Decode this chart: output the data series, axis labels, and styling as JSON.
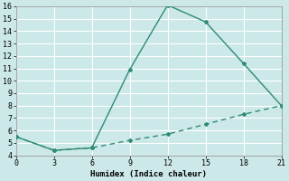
{
  "xlabel": "Humidex (Indice chaleur)",
  "background_color": "#cce8e8",
  "grid_color": "#ffffff",
  "line_color": "#2e8b74",
  "xlim": [
    0,
    21
  ],
  "ylim": [
    4,
    16
  ],
  "xticks": [
    0,
    3,
    6,
    9,
    12,
    15,
    18,
    21
  ],
  "yticks": [
    4,
    5,
    6,
    7,
    8,
    9,
    10,
    11,
    12,
    13,
    14,
    15,
    16
  ],
  "line1_x": [
    0,
    3,
    6,
    9,
    12,
    15,
    18,
    21
  ],
  "line1_y": [
    5.5,
    4.4,
    4.6,
    10.9,
    16.1,
    14.75,
    11.4,
    8.0
  ],
  "line2_x": [
    0,
    3,
    6,
    9,
    12,
    15,
    18,
    21
  ],
  "line2_y": [
    5.5,
    4.4,
    4.6,
    5.2,
    5.7,
    6.5,
    7.3,
    8.0
  ]
}
